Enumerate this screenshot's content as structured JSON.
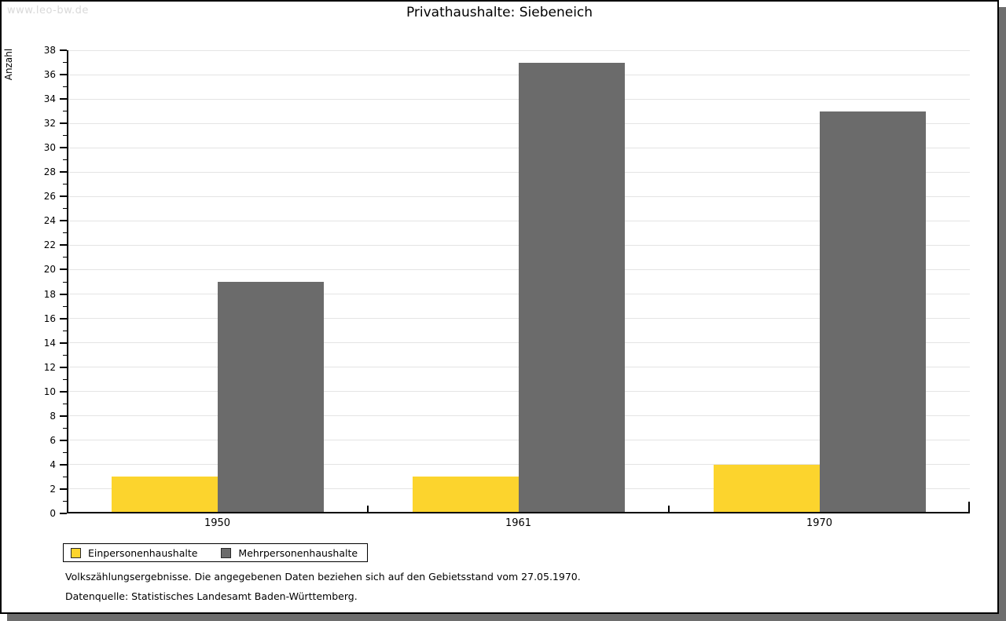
{
  "watermark": "www.leo-bw.de",
  "title": "Privathaushalte: Siebeneich",
  "ylabel": "Anzahl",
  "colors": {
    "einpersonen": "#fcd42d",
    "mehrpersonen": "#6b6b6b",
    "grid": "#e4e4e4",
    "axis": "#000000",
    "watermark": "#d9d9d9",
    "shadow": "#6e6e6e"
  },
  "chart_data": {
    "type": "bar",
    "title": "Privathaushalte: Siebeneich",
    "xlabel": "",
    "ylabel": "Anzahl",
    "categories": [
      "1950",
      "1961",
      "1970"
    ],
    "series": [
      {
        "name": "Einpersonenhaushalte",
        "color": "#fcd42d",
        "values": [
          3,
          3,
          4
        ]
      },
      {
        "name": "Mehrpersonenhaushalte",
        "color": "#6b6b6b",
        "values": [
          19,
          37,
          33
        ]
      }
    ],
    "ylim": [
      0,
      38
    ],
    "ytick_step": 2,
    "yminor_step": 1,
    "grid": true,
    "legend_position": "bottom-left"
  },
  "legend": {
    "items": [
      {
        "label": "Einpersonenhaushalte",
        "color": "#fcd42d"
      },
      {
        "label": "Mehrpersonenhaushalte",
        "color": "#6b6b6b"
      }
    ]
  },
  "footer": {
    "line1": "Volkszählungsergebnisse. Die angegebenen Daten beziehen sich auf den Gebietsstand vom 27.05.1970.",
    "line2": "Datenquelle: Statistisches Landesamt Baden-Württemberg."
  }
}
